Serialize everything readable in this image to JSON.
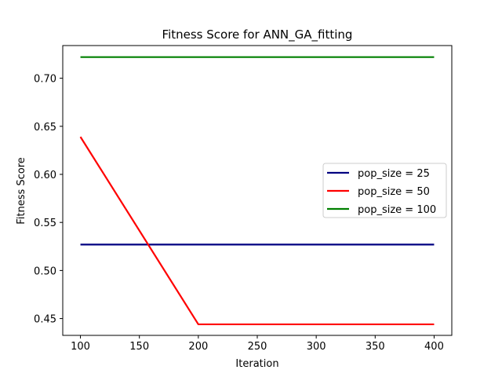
{
  "chart_data": {
    "type": "line",
    "title": "Fitness Score for ANN_GA_fitting",
    "xlabel": "Iteration",
    "ylabel": "Fitness Score",
    "x": [
      100,
      200,
      300,
      400
    ],
    "xlim": [
      85,
      415
    ],
    "ylim": [
      0.4325,
      0.734
    ],
    "xticks": [
      100,
      150,
      200,
      250,
      300,
      350,
      400
    ],
    "yticks": [
      0.45,
      0.5,
      0.55,
      0.6,
      0.65,
      0.7
    ],
    "yticklabels": [
      "0.45",
      "0.50",
      "0.55",
      "0.60",
      "0.65",
      "0.70"
    ],
    "grid": false,
    "legend_position": "center-right",
    "series": [
      {
        "name": "pop_size = 25",
        "color": "#000080",
        "values": [
          0.527,
          0.527,
          0.527,
          0.527
        ]
      },
      {
        "name": "pop_size = 50",
        "color": "#ff0000",
        "values": [
          0.639,
          0.444,
          0.444,
          0.444
        ]
      },
      {
        "name": "pop_size = 100",
        "color": "#008000",
        "values": [
          0.722,
          0.722,
          0.722,
          0.722
        ]
      }
    ]
  }
}
